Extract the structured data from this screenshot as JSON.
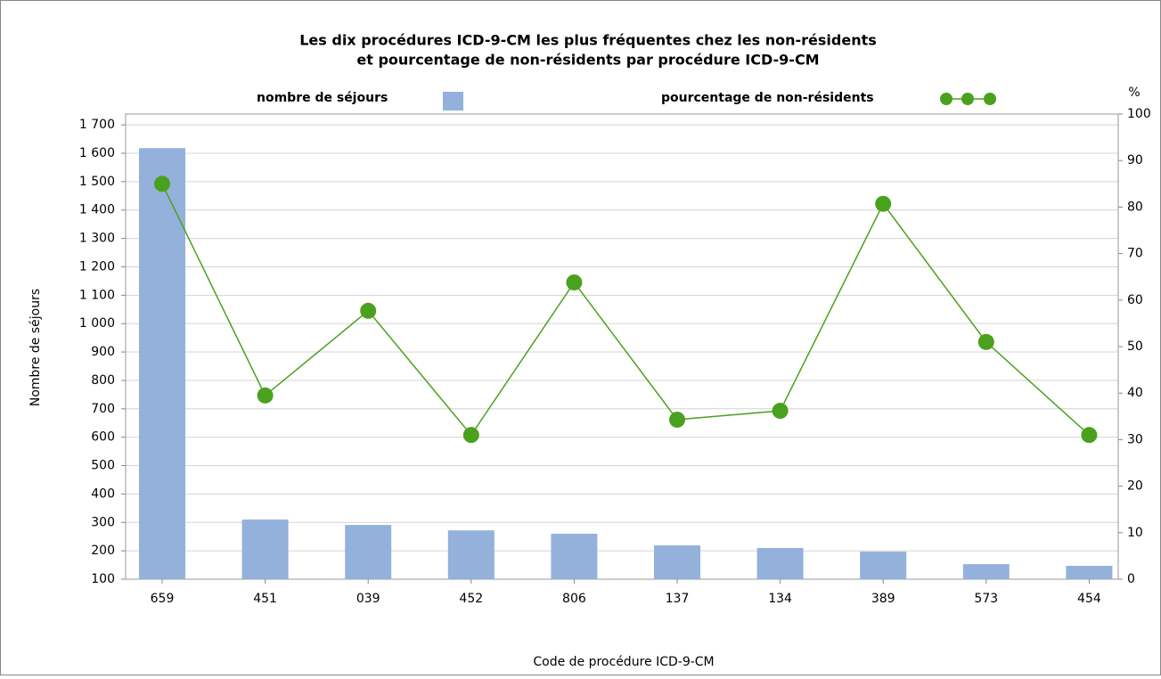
{
  "chart_data": {
    "type": "bar-line",
    "title": [
      "Les dix procédures ICD-9-CM les plus fréquentes chez les non-résidents",
      "et pourcentage de non-résidents par procédure ICD-9-CM"
    ],
    "x_label": "Code de procédure ICD-9-CM",
    "y_label": "Nombre de séjours",
    "y2_label": "%",
    "categories": [
      "659",
      "451",
      "039",
      "452",
      "806",
      "137",
      "134",
      "389",
      "573",
      "454"
    ],
    "series": [
      {
        "name": "nombre de séjours",
        "type": "bar",
        "color": "#93b1db",
        "values": [
          1618,
          310,
          291,
          272,
          260,
          219,
          210,
          197,
          153,
          147
        ]
      },
      {
        "name": "pourcentage de non-résidents",
        "type": "line",
        "axis": "y2",
        "color": "#4aa11d",
        "values": [
          85,
          39.5,
          57.7,
          31,
          63.8,
          34.3,
          36.2,
          80.7,
          51,
          31
        ]
      }
    ],
    "ylim": [
      100,
      1738
    ],
    "yticks": [
      100,
      200,
      300,
      400,
      500,
      600,
      700,
      800,
      900,
      {
        "value": 1000,
        "label": "1 000"
      },
      {
        "value": 1100,
        "label": "1 100"
      },
      {
        "value": 1200,
        "label": "1 200"
      },
      {
        "value": 1300,
        "label": "1 300"
      },
      {
        "value": 1400,
        "label": "1 400"
      },
      {
        "value": 1500,
        "label": "1 500"
      },
      {
        "value": 1600,
        "label": "1 600"
      },
      {
        "value": 1700,
        "label": "1 700"
      }
    ],
    "y2lim": [
      0,
      100
    ],
    "y2ticks": [
      0,
      10,
      20,
      30,
      40,
      50,
      60,
      70,
      80,
      90,
      100
    ],
    "grid": true
  }
}
